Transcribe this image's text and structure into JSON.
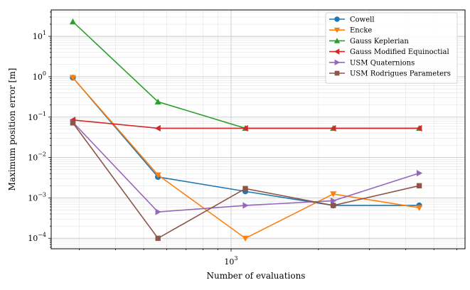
{
  "chart_data": {
    "type": "line",
    "xscale": "log",
    "yscale": "log",
    "xlabel": "Number of evaluations",
    "ylabel": "Maximum position error [m]",
    "xlim": [
      240,
      6400
    ],
    "ylim": [
      5.5e-05,
      45
    ],
    "x_tick_labels": [
      {
        "value": 1000,
        "base": "10",
        "exp": "3"
      }
    ],
    "y_tick_labels": [
      {
        "value": 0.0001,
        "base": "10",
        "exp": "−4"
      },
      {
        "value": 0.001,
        "base": "10",
        "exp": "−3"
      },
      {
        "value": 0.01,
        "base": "10",
        "exp": "−2"
      },
      {
        "value": 0.1,
        "base": "10",
        "exp": "−1"
      },
      {
        "value": 1,
        "base": "10",
        "exp": "0"
      },
      {
        "value": 10,
        "base": "10",
        "exp": "1"
      }
    ],
    "grid": true,
    "legend_position": "top-right",
    "series": [
      {
        "name": "Cowell",
        "color": "#1f77b4",
        "marker": "circle",
        "x": [
          285,
          560,
          1120,
          2250,
          4450
        ],
        "y": [
          0.95,
          0.0033,
          0.00145,
          0.00065,
          0.00065
        ]
      },
      {
        "name": "Encke",
        "color": "#ff7f0e",
        "marker": "triangle-down",
        "x": [
          285,
          560,
          1120,
          2250,
          4450
        ],
        "y": [
          0.95,
          0.0037,
          0.0001,
          0.00125,
          0.00057
        ]
      },
      {
        "name": "Gauss Keplerian",
        "color": "#2ca02c",
        "marker": "triangle-up",
        "x": [
          285,
          560,
          1120,
          2250,
          4450
        ],
        "y": [
          23,
          0.24,
          0.053,
          0.053,
          0.053
        ]
      },
      {
        "name": "Gauss Modified Equinoctial",
        "color": "#d62728",
        "marker": "triangle-left",
        "x": [
          285,
          560,
          1120,
          2250,
          4450
        ],
        "y": [
          0.085,
          0.053,
          0.053,
          0.053,
          0.053
        ]
      },
      {
        "name": "USM Quaternions",
        "color": "#9467bd",
        "marker": "triangle-right",
        "x": [
          285,
          560,
          1120,
          2250,
          4450
        ],
        "y": [
          0.075,
          0.00045,
          0.00065,
          0.00085,
          0.0041
        ]
      },
      {
        "name": "USM Rodrigues Parameters",
        "color": "#8c564b",
        "marker": "square",
        "x": [
          285,
          560,
          1120,
          2250,
          4450
        ],
        "y": [
          0.072,
          0.0001,
          0.0017,
          0.00065,
          0.002
        ]
      }
    ]
  }
}
